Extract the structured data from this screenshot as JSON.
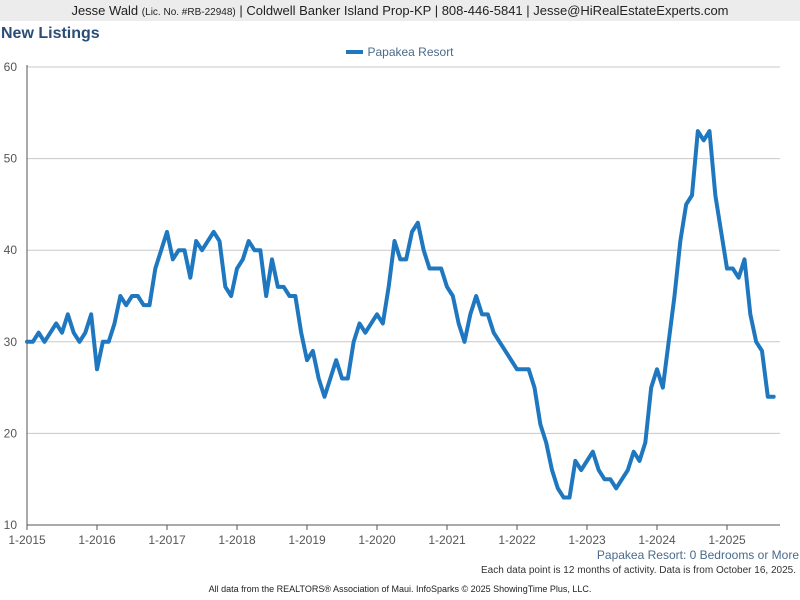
{
  "header": {
    "name": "Jesse Wald",
    "license": "(Lic. No. #RB-22948)",
    "rest": "| Coldwell Banker Island Prop-KP | 808-446-5841 | Jesse@HiRealEstateExperts.com"
  },
  "title": "New Listings",
  "subtitle": "Papakea Resort: 0 Bedrooms or More",
  "note": "Each data point is 12 months of activity. Data is from October 16, 2025.",
  "footer": "All data from the REALTORS® Association of Maui. InfoSparks © 2025 ShowingTime Plus, LLC.",
  "colors": {
    "series": "#1f78bf",
    "grid": "#c8c8c8",
    "axis": "#555555"
  },
  "chart_data": {
    "type": "line",
    "title": "New Listings",
    "xlabel": "",
    "ylabel": "",
    "ylim": [
      10,
      60
    ],
    "yticks": [
      "10",
      "20",
      "30",
      "40",
      "50",
      "60"
    ],
    "xticks": [
      "1-2015",
      "1-2016",
      "1-2017",
      "1-2018",
      "1-2019",
      "1-2020",
      "1-2021",
      "1-2022",
      "1-2023",
      "1-2024",
      "1-2025"
    ],
    "x_start": "2015-01",
    "x_end": "2025-09",
    "grid": true,
    "legend_position": "top-center",
    "series": [
      {
        "name": "Papakea Resort",
        "values": [
          30,
          30,
          31,
          30,
          31,
          32,
          31,
          33,
          31,
          30,
          31,
          33,
          27,
          30,
          30,
          32,
          35,
          34,
          35,
          35,
          34,
          34,
          38,
          40,
          42,
          39,
          40,
          40,
          37,
          41,
          40,
          41,
          42,
          41,
          36,
          35,
          38,
          39,
          41,
          40,
          40,
          35,
          39,
          36,
          36,
          35,
          35,
          31,
          28,
          29,
          26,
          24,
          26,
          28,
          26,
          26,
          30,
          32,
          31,
          32,
          33,
          32,
          36,
          41,
          39,
          39,
          42,
          43,
          40,
          38,
          38,
          38,
          36,
          35,
          32,
          30,
          33,
          35,
          33,
          33,
          31,
          30,
          29,
          28,
          27,
          27,
          27,
          25,
          21,
          19,
          16,
          14,
          13,
          13,
          17,
          16,
          17,
          18,
          16,
          15,
          15,
          14,
          15,
          16,
          18,
          17,
          19,
          25,
          27,
          25,
          30,
          35,
          41,
          45,
          46,
          53,
          52,
          53,
          46,
          42,
          38,
          38,
          37,
          39,
          33,
          30,
          29,
          24,
          24
        ]
      }
    ]
  }
}
